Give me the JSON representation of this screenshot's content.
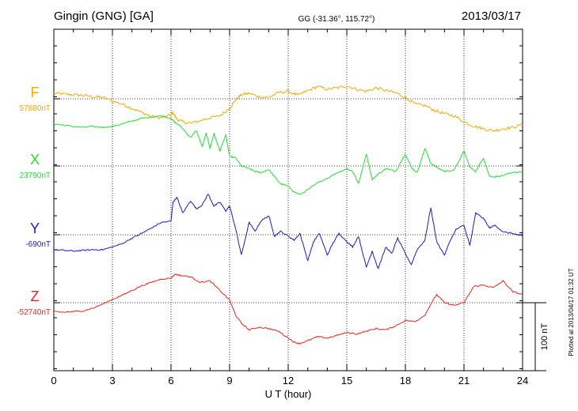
{
  "header": {
    "station": "Gingin (GNG)  [GA]",
    "coords": "GG (-31.36°, 115.72°)",
    "date": "2013/03/17"
  },
  "footer_note": "Plotted at 2013/04/17 01:32 UT",
  "chart_data": {
    "type": "line",
    "xlabel": "U T (hour)",
    "xlim": [
      0,
      24
    ],
    "xticks": [
      "0",
      "3",
      "6",
      "9",
      "12",
      "15",
      "18",
      "21",
      "24"
    ],
    "scale_bar": "100 nT",
    "series": [
      {
        "name": "F",
        "baseline": "57880nT",
        "color": "#f5a800",
        "x": [
          0,
          0.5,
          1,
          1.5,
          2,
          2.5,
          3,
          3.5,
          4,
          4.5,
          5,
          5.5,
          6,
          6.1,
          6.3,
          6.6,
          7,
          7.5,
          8,
          8.5,
          9,
          9.3,
          9.6,
          10,
          10.5,
          11,
          11.5,
          12,
          12.5,
          13,
          13.5,
          14,
          14.5,
          15,
          15.5,
          16,
          16.5,
          17,
          17.5,
          18,
          18.5,
          19,
          19.5,
          20,
          20.5,
          21,
          21.5,
          22,
          22.5,
          23,
          23.5,
          24
        ],
        "y": [
          8,
          7,
          6,
          5,
          3,
          2,
          -3,
          -8,
          -14,
          -20,
          -26,
          -28,
          -24,
          -20,
          -30,
          -34,
          -36,
          -32,
          -28,
          -25,
          -14,
          -2,
          6,
          8,
          3,
          2,
          9,
          11,
          5,
          12,
          18,
          14,
          16,
          19,
          14,
          11,
          16,
          12,
          9,
          2,
          -8,
          -10,
          -17,
          -22,
          -25,
          -34,
          -40,
          -44,
          -47,
          -44,
          -42,
          -38
        ]
      },
      {
        "name": "X",
        "baseline": "23790nT",
        "color": "#22dd33",
        "x": [
          0,
          0.5,
          1,
          1.5,
          2,
          2.5,
          3,
          3.5,
          4,
          4.5,
          5,
          5.5,
          6,
          6.2,
          6.5,
          7,
          7.3,
          7.6,
          7.8,
          8,
          8.2,
          8.5,
          8.8,
          9,
          9.3,
          9.6,
          10,
          10.3,
          10.6,
          11,
          11.3,
          11.6,
          12,
          12.3,
          12.6,
          13,
          13.5,
          14,
          14.5,
          15,
          15.3,
          15.6,
          16,
          16.3,
          16.6,
          17,
          17.5,
          18,
          18.3,
          18.6,
          19,
          19.3,
          19.6,
          20,
          20.5,
          21,
          21.3,
          21.6,
          22,
          22.3,
          22.6,
          23,
          23.5,
          24
        ],
        "y": [
          62,
          60,
          58,
          57,
          58,
          57,
          58,
          62,
          66,
          70,
          72,
          74,
          70,
          64,
          58,
          42,
          52,
          28,
          48,
          26,
          48,
          22,
          46,
          14,
          12,
          0,
          -4,
          -8,
          -10,
          -5,
          -16,
          -26,
          -30,
          -38,
          -42,
          -35,
          -25,
          -18,
          -10,
          -4,
          -8,
          -26,
          18,
          -20,
          -12,
          -4,
          -8,
          18,
          -2,
          -10,
          26,
          4,
          -2,
          -8,
          -6,
          22,
          -2,
          -8,
          12,
          -15,
          -16,
          -14,
          -10,
          -8
        ]
      },
      {
        "name": "Y",
        "baseline": "-690nT",
        "color": "#1a1acc",
        "x": [
          0,
          0.5,
          1,
          1.5,
          2,
          2.5,
          3,
          3.5,
          4,
          4.5,
          5,
          5.5,
          6,
          6.1,
          6.3,
          6.6,
          7,
          7.3,
          7.6,
          7.9,
          8.2,
          8.5,
          8.8,
          9,
          9.3,
          9.6,
          10,
          10.3,
          10.6,
          11,
          11.3,
          11.6,
          12,
          12.3,
          12.6,
          13,
          13.3,
          13.6,
          14,
          14.3,
          14.6,
          15,
          15.3,
          15.6,
          16,
          16.3,
          16.6,
          17,
          17.3,
          17.6,
          18,
          18.3,
          18.6,
          19,
          19.3,
          19.6,
          20,
          20.3,
          20.6,
          21,
          21.3,
          21.6,
          22,
          22.3,
          22.6,
          23,
          23.5,
          24
        ],
        "y": [
          -22,
          -23,
          -24,
          -23,
          -22,
          -22,
          -18,
          -13,
          -5,
          2,
          10,
          18,
          20,
          48,
          55,
          32,
          50,
          38,
          44,
          60,
          42,
          48,
          35,
          42,
          10,
          -30,
          18,
          5,
          20,
          28,
          -2,
          5,
          -2,
          -8,
          2,
          -38,
          -10,
          2,
          -30,
          -12,
          2,
          -10,
          -18,
          -2,
          -48,
          -24,
          -50,
          -18,
          -28,
          -5,
          -28,
          -44,
          -22,
          -8,
          40,
          -10,
          -30,
          -8,
          8,
          14,
          -16,
          32,
          24,
          10,
          14,
          4,
          2,
          -2
        ]
      },
      {
        "name": "Z",
        "baseline": "-52740nT",
        "color": "#ee2222",
        "x": [
          0,
          0.5,
          1,
          1.5,
          2,
          2.5,
          3,
          3.5,
          4,
          4.5,
          5,
          5.5,
          6,
          6.2,
          6.5,
          7,
          7.5,
          8,
          8.5,
          9,
          9.3,
          9.6,
          10,
          10.5,
          11,
          11.5,
          12,
          12.3,
          12.6,
          13,
          13.5,
          14,
          14.5,
          15,
          15.5,
          16,
          16.5,
          17,
          17.5,
          18,
          18.5,
          19,
          19.3,
          19.6,
          20,
          20.5,
          21,
          21.5,
          22,
          22.5,
          23,
          23.5,
          24
        ],
        "y": [
          -13,
          -14,
          -13,
          -12,
          -8,
          -2,
          5,
          11,
          18,
          25,
          30,
          35,
          36,
          42,
          40,
          38,
          30,
          32,
          18,
          4,
          -18,
          -30,
          -40,
          -36,
          -38,
          -42,
          -52,
          -58,
          -60,
          -56,
          -50,
          -52,
          -48,
          -44,
          -46,
          -42,
          -38,
          -40,
          -34,
          -26,
          -28,
          -18,
          -2,
          12,
          0,
          -4,
          0,
          24,
          26,
          22,
          32,
          16,
          12
        ]
      }
    ]
  }
}
